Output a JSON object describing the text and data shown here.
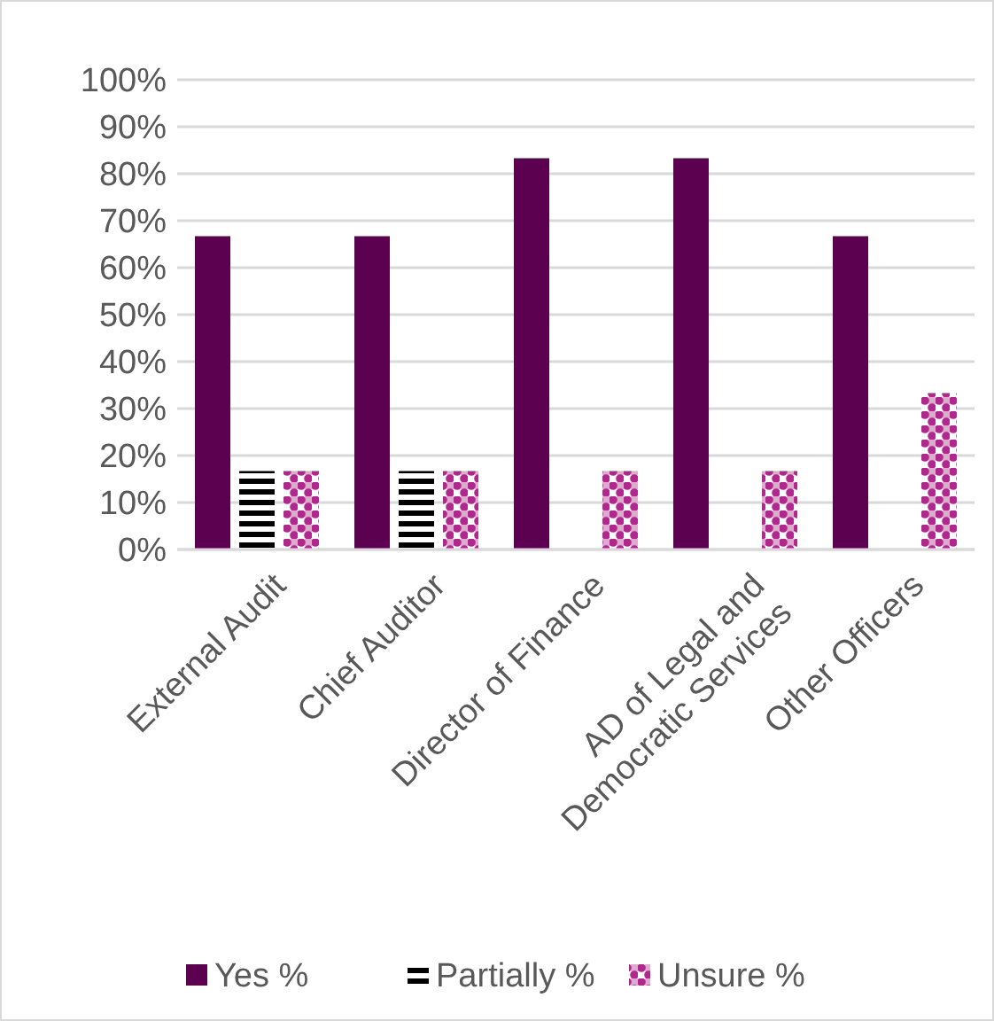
{
  "chart_data": {
    "type": "bar",
    "categories": [
      "External Audit",
      "Chief Auditor",
      "Director of Finance",
      "AD of Legal and Democratic Services",
      "Other Officers"
    ],
    "series": [
      {
        "name": "Yes %",
        "color": "#5c0050",
        "values": [
          66.7,
          66.7,
          83.3,
          83.3,
          66.7
        ]
      },
      {
        "name": "Partially %",
        "color": "#000000",
        "values": [
          16.7,
          16.7,
          0,
          0,
          0
        ]
      },
      {
        "name": "Unsure %",
        "color": "#b0288c",
        "values": [
          16.7,
          16.7,
          16.7,
          16.7,
          33.3
        ]
      }
    ],
    "ylim": [
      0,
      100
    ],
    "yticks": [
      {
        "value": 0,
        "label": "0%"
      },
      {
        "value": 10,
        "label": "10%"
      },
      {
        "value": 20,
        "label": "20%"
      },
      {
        "value": 30,
        "label": "30%"
      },
      {
        "value": 40,
        "label": "40%"
      },
      {
        "value": 50,
        "label": "50%"
      },
      {
        "value": 60,
        "label": "60%"
      },
      {
        "value": 70,
        "label": "70%"
      },
      {
        "value": 80,
        "label": "80%"
      },
      {
        "value": 90,
        "label": "90%"
      },
      {
        "value": 100,
        "label": "100%"
      }
    ],
    "grid": "y",
    "legend": "bottom"
  }
}
